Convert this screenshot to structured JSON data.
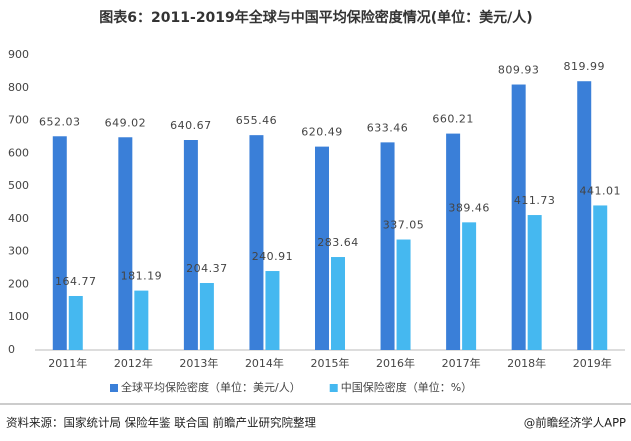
{
  "chart_data": {
    "type": "bar",
    "title": "图表6：2011-2019年全球与中国平均保险密度情况(单位：美元/人)",
    "categories": [
      "2011年",
      "2012年",
      "2013年",
      "2014年",
      "2015年",
      "2016年",
      "2017年",
      "2018年",
      "2019年"
    ],
    "series": [
      {
        "name": "全球平均保险密度（单位：美元/人）",
        "color": "#3a7fd8",
        "values": [
          652.03,
          649.02,
          640.67,
          655.46,
          620.49,
          633.46,
          660.21,
          809.93,
          819.99
        ]
      },
      {
        "name": "中国保险密度（单位：%）",
        "color": "#45b8f0",
        "values": [
          164.77,
          181.19,
          204.37,
          240.91,
          283.64,
          337.05,
          389.46,
          411.73,
          441.01
        ]
      }
    ],
    "ylim": [
      0,
      900
    ],
    "yticks": [
      0,
      100,
      200,
      300,
      400,
      500,
      600,
      700,
      800,
      900
    ],
    "grid": false,
    "legend": "bottom",
    "source": "资料来源：国家统计局 保险年鉴 联合国 前瞻产业研究院整理",
    "credit": "@前瞻经济学人APP"
  }
}
